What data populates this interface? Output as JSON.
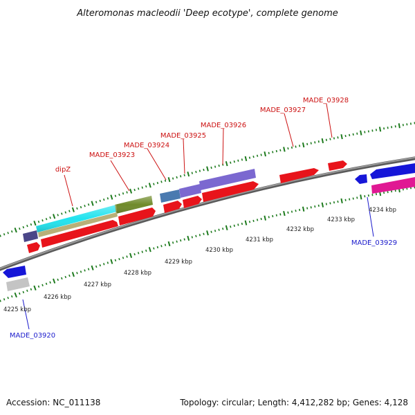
{
  "title": "Alteromonas macleodii 'Deep ecotype', complete genome",
  "footer": {
    "accession": "Accession: NC_011138",
    "summary": "Topology: circular; Length: 4,412,282 bp; Genes: 4,128"
  },
  "scale": {
    "unit": "kbp",
    "tick_labels": [
      "4225 kbp",
      "4226 kbp",
      "4227 kbp",
      "4228 kbp",
      "4229 kbp",
      "4230 kbp",
      "4231 kbp",
      "4232 kbp",
      "4233 kbp",
      "4234 kbp"
    ]
  },
  "gene_labels": [
    {
      "name": "dipZ",
      "strand": "forward"
    },
    {
      "name": "MADE_03923",
      "strand": "forward"
    },
    {
      "name": "MADE_03924",
      "strand": "forward"
    },
    {
      "name": "MADE_03925",
      "strand": "forward"
    },
    {
      "name": "MADE_03926",
      "strand": "forward"
    },
    {
      "name": "MADE_03927",
      "strand": "forward"
    },
    {
      "name": "MADE_03928",
      "strand": "forward"
    },
    {
      "name": "MADE_03920",
      "strand": "reverse"
    },
    {
      "name": "MADE_03929",
      "strand": "reverse"
    }
  ],
  "colors": {
    "forward_gene": "#e8141b",
    "reverse_gene": "#1616d8",
    "forward_label": "#cc1111",
    "reverse_label": "#1a1acc",
    "backbone": "#7a7a7a",
    "tick_green": "#1d7a1d",
    "feature_cyan": "#22e3ee",
    "feature_olive": "#6f8a2a",
    "feature_tan": "#b8b078",
    "feature_slate": "#4a4688",
    "feature_steelblue": "#4a7ab0",
    "feature_violet": "#7b68d0",
    "feature_magenta": "#e01893",
    "feature_grey": "#c4c4c4"
  }
}
